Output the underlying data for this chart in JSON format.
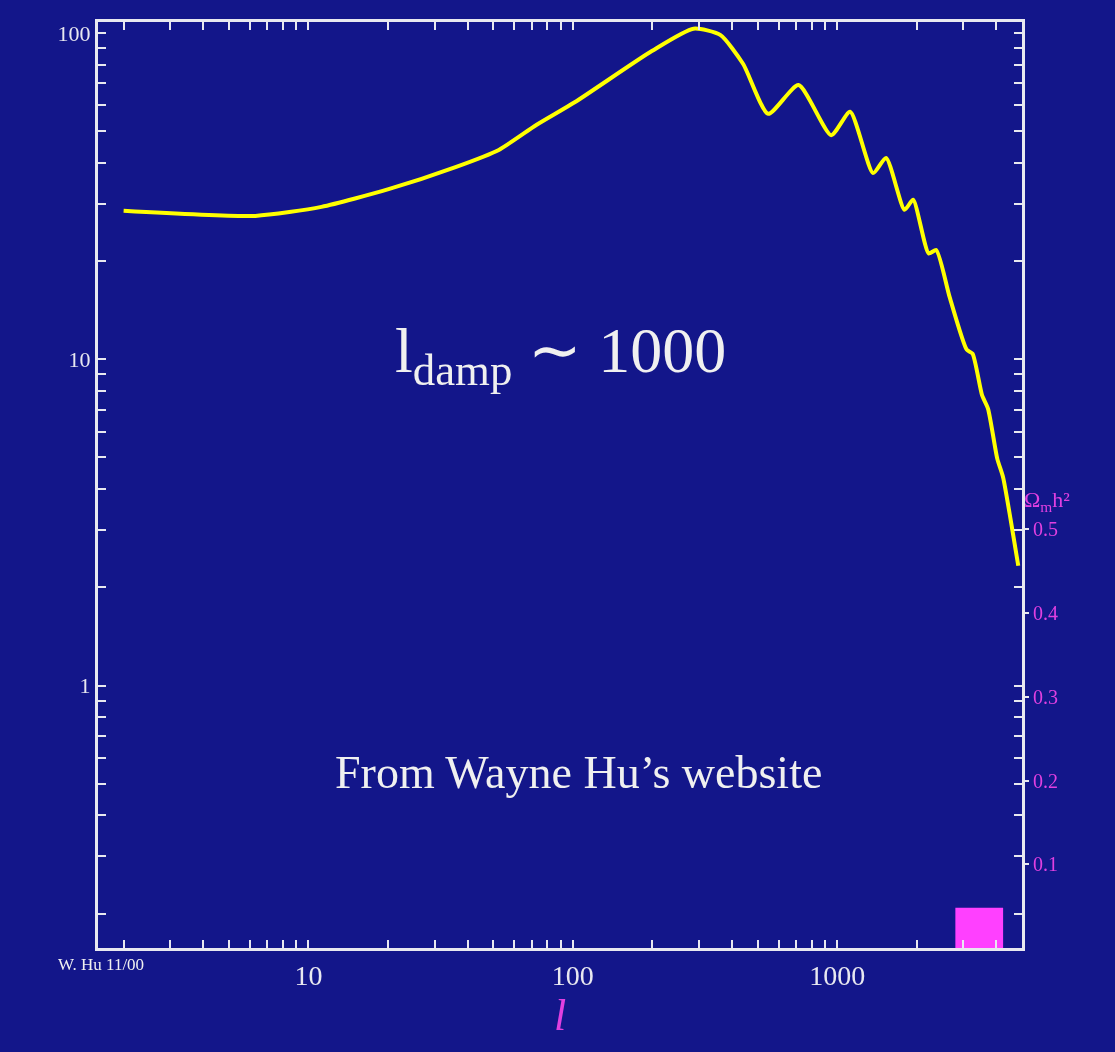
{
  "chart_data": {
    "type": "line",
    "xlabel": "l",
    "y2label": "Ω$_{m}$h²",
    "log": "xy",
    "grid": false,
    "marker": "none",
    "line_style": "solid",
    "xlim": [
      1.6,
      5000
    ],
    "ylim": [
      0.157,
      108
    ],
    "y2lim": [
      0,
      1.106
    ],
    "xticks": [
      {
        "value": 2,
        "label": null
      },
      {
        "value": 3,
        "label": null
      },
      {
        "value": 4,
        "label": null
      },
      {
        "value": 5,
        "label": null
      },
      {
        "value": 6,
        "label": null
      },
      {
        "value": 7,
        "label": null
      },
      {
        "value": 8,
        "label": null
      },
      {
        "value": 9,
        "label": null
      },
      10,
      {
        "value": 20,
        "label": null
      },
      {
        "value": 30,
        "label": null
      },
      {
        "value": 40,
        "label": null
      },
      {
        "value": 50,
        "label": null
      },
      {
        "value": 60,
        "label": null
      },
      {
        "value": 70,
        "label": null
      },
      {
        "value": 80,
        "label": null
      },
      {
        "value": 90,
        "label": null
      },
      100,
      {
        "value": 200,
        "label": null
      },
      {
        "value": 300,
        "label": null
      },
      {
        "value": 400,
        "label": null
      },
      {
        "value": 500,
        "label": null
      },
      {
        "value": 600,
        "label": null
      },
      {
        "value": 700,
        "label": null
      },
      {
        "value": 800,
        "label": null
      },
      {
        "value": 900,
        "label": null
      },
      1000,
      {
        "value": 2000,
        "label": null
      },
      {
        "value": 3000,
        "label": null
      },
      {
        "value": 4000,
        "label": null
      }
    ],
    "yticks": [
      {
        "value": 0.2,
        "label": null
      },
      {
        "value": 0.3,
        "label": null
      },
      {
        "value": 0.4,
        "label": null
      },
      {
        "value": 0.5,
        "label": null
      },
      {
        "value": 0.6,
        "label": null
      },
      {
        "value": 0.7,
        "label": null
      },
      {
        "value": 0.8,
        "label": null
      },
      {
        "value": 0.9,
        "label": null
      },
      1,
      {
        "value": 2,
        "label": null
      },
      {
        "value": 3,
        "label": null
      },
      {
        "value": 4,
        "label": null
      },
      {
        "value": 5,
        "label": null
      },
      {
        "value": 6,
        "label": null
      },
      {
        "value": 7,
        "label": null
      },
      {
        "value": 8,
        "label": null
      },
      {
        "value": 9,
        "label": null
      },
      10,
      {
        "value": 20,
        "label": null
      },
      {
        "value": 30,
        "label": null
      },
      {
        "value": 40,
        "label": null
      },
      {
        "value": 50,
        "label": null
      },
      {
        "value": 60,
        "label": null
      },
      {
        "value": 70,
        "label": null
      },
      {
        "value": 80,
        "label": null
      },
      {
        "value": 90,
        "label": null
      },
      100
    ],
    "y2ticks": [
      0.1,
      0.2,
      0.3,
      0.4,
      0.5
    ],
    "series": [
      {
        "color": "#ffff00",
        "x": [
          2,
          6.3,
          11.2,
          20.1,
          36,
          52.5,
          73,
          102,
          199,
          286,
          361,
          441,
          548,
          714,
          949,
          1119,
          1367,
          1530,
          1798,
          1937,
          2218,
          2368,
          2663,
          3090,
          3250,
          3530,
          3720,
          4030,
          4240,
          4530,
          4840
        ],
        "values": [
          28.5,
          27.5,
          29.3,
          33.2,
          38.8,
          43.8,
          52.3,
          61.4,
          88,
          103,
          98.6,
          80.3,
          56.5,
          69.2,
          48.6,
          57.3,
          37.2,
          41.4,
          28.7,
          30.8,
          21.1,
          21.6,
          15.5,
          10.7,
          10.4,
          7.76,
          7.05,
          4.96,
          4.35,
          3.22,
          2.33
        ]
      },
      {
        "type": "bar",
        "axis": "y2",
        "color": "#ff40ff",
        "x": [
          3520
        ],
        "values": [
          0.048
        ]
      }
    ],
    "annotations": [
      "l$_{damp}$ ∼ 1000",
      "From Wayne Hu’s website",
      "W. Hu 11/00"
    ]
  }
}
